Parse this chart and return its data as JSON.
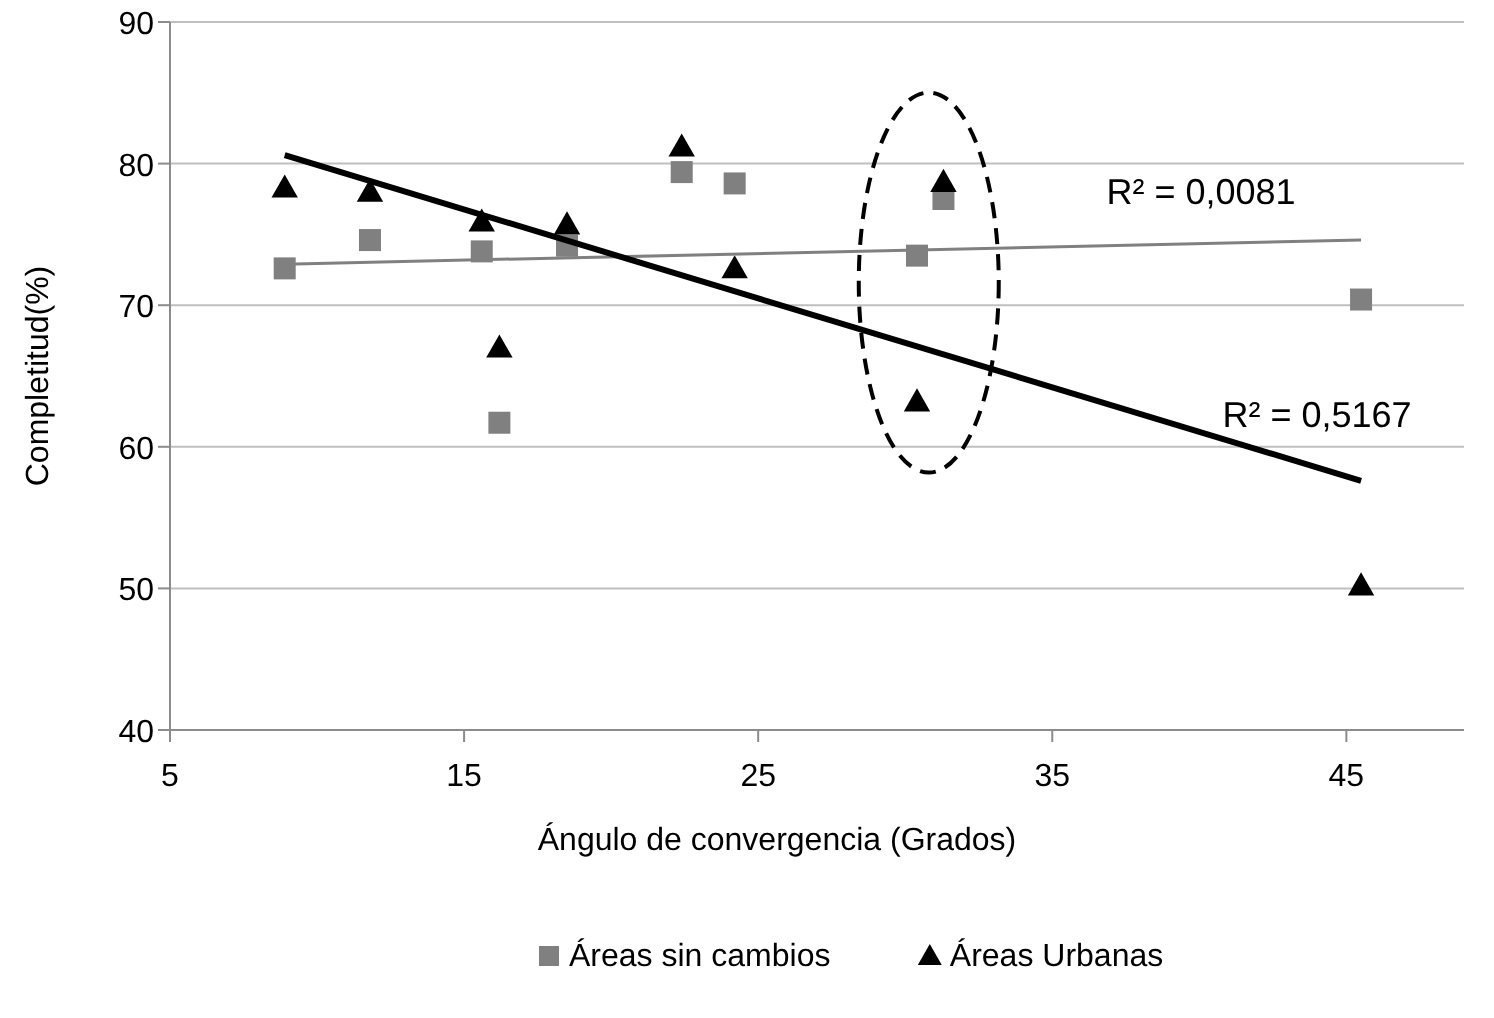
{
  "chart_data": {
    "type": "scatter",
    "xlabel": "Ángulo de convergencia  (Grados)",
    "ylabel": "Completitud(%)",
    "xlim": [
      5,
      49
    ],
    "xticks": [
      5,
      15,
      25,
      35,
      45
    ],
    "ylim": [
      40,
      90
    ],
    "yticks": [
      40,
      50,
      60,
      70,
      80,
      90
    ],
    "grid": "y",
    "legend": "bottom",
    "series": [
      {
        "name": "Áreas sin cambios",
        "color": "#808080",
        "marker": "square",
        "x": [
          8.9,
          11.8,
          15.6,
          16.2,
          18.5,
          22.4,
          24.2,
          30.4,
          31.3,
          45.5
        ],
        "values": [
          72.6,
          74.6,
          73.8,
          61.7,
          74.2,
          79.4,
          78.6,
          73.5,
          77.5,
          70.4
        ]
      },
      {
        "name": "Áreas Urbanas",
        "color": "#000000",
        "marker": "triangle",
        "x": [
          8.9,
          11.8,
          15.6,
          16.2,
          18.5,
          22.4,
          24.2,
          30.4,
          31.3,
          45.5
        ],
        "values": [
          78.3,
          78.0,
          75.9,
          67.0,
          75.7,
          81.2,
          72.6,
          63.2,
          78.7,
          50.2
        ]
      },
      {
        "type": "line",
        "color": "#808080",
        "marker": "none",
        "x": [
          8.9,
          45.5
        ],
        "values": [
          72.9,
          74.6
        ]
      },
      {
        "type": "line",
        "color": "#000000",
        "marker": "none",
        "x": [
          8.9,
          45.5
        ],
        "values": [
          80.6,
          57.6
        ]
      }
    ],
    "annotations": [
      "R² = 0,0081",
      "R² = 0,5167"
    ]
  }
}
